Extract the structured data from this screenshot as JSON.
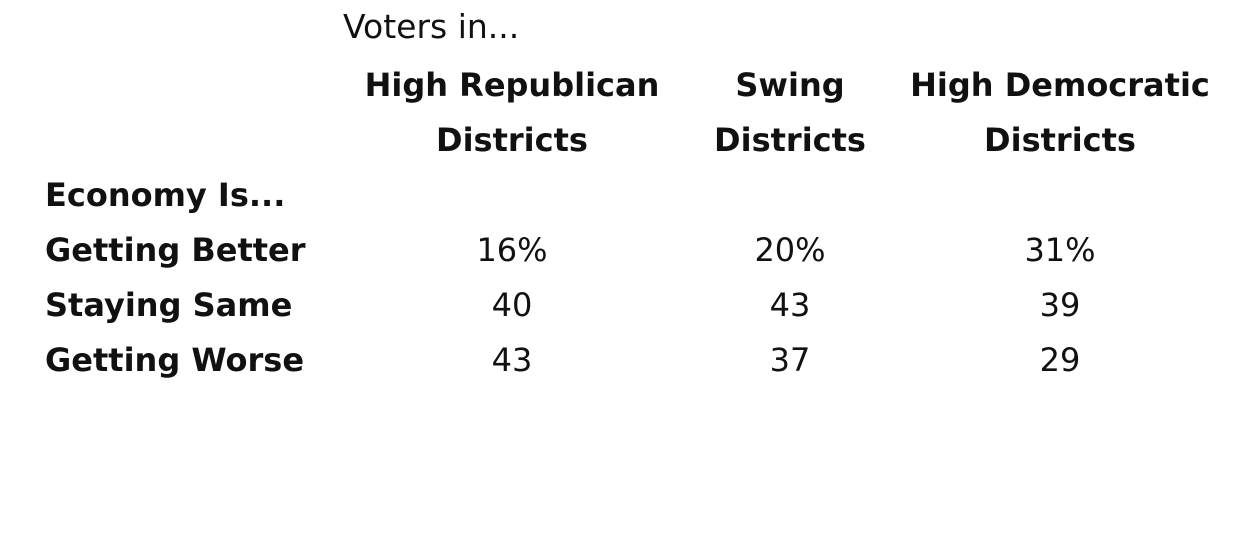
{
  "chart_data": {
    "type": "table",
    "supertitle": "Voters in...",
    "section_label": "Economy Is...",
    "columns": [
      {
        "line1": "High Republican",
        "line2": "Districts"
      },
      {
        "line1": "Swing",
        "line2": "Districts"
      },
      {
        "line1": "High Democratic",
        "line2": "Districts"
      }
    ],
    "rows": [
      {
        "label": "Getting Better",
        "cells": [
          "16%",
          "20%",
          "31%"
        ]
      },
      {
        "label": "Staying Same",
        "cells": [
          "40",
          "43",
          "39"
        ]
      },
      {
        "label": "Getting Worse",
        "cells": [
          "43",
          "37",
          "29"
        ]
      }
    ]
  }
}
